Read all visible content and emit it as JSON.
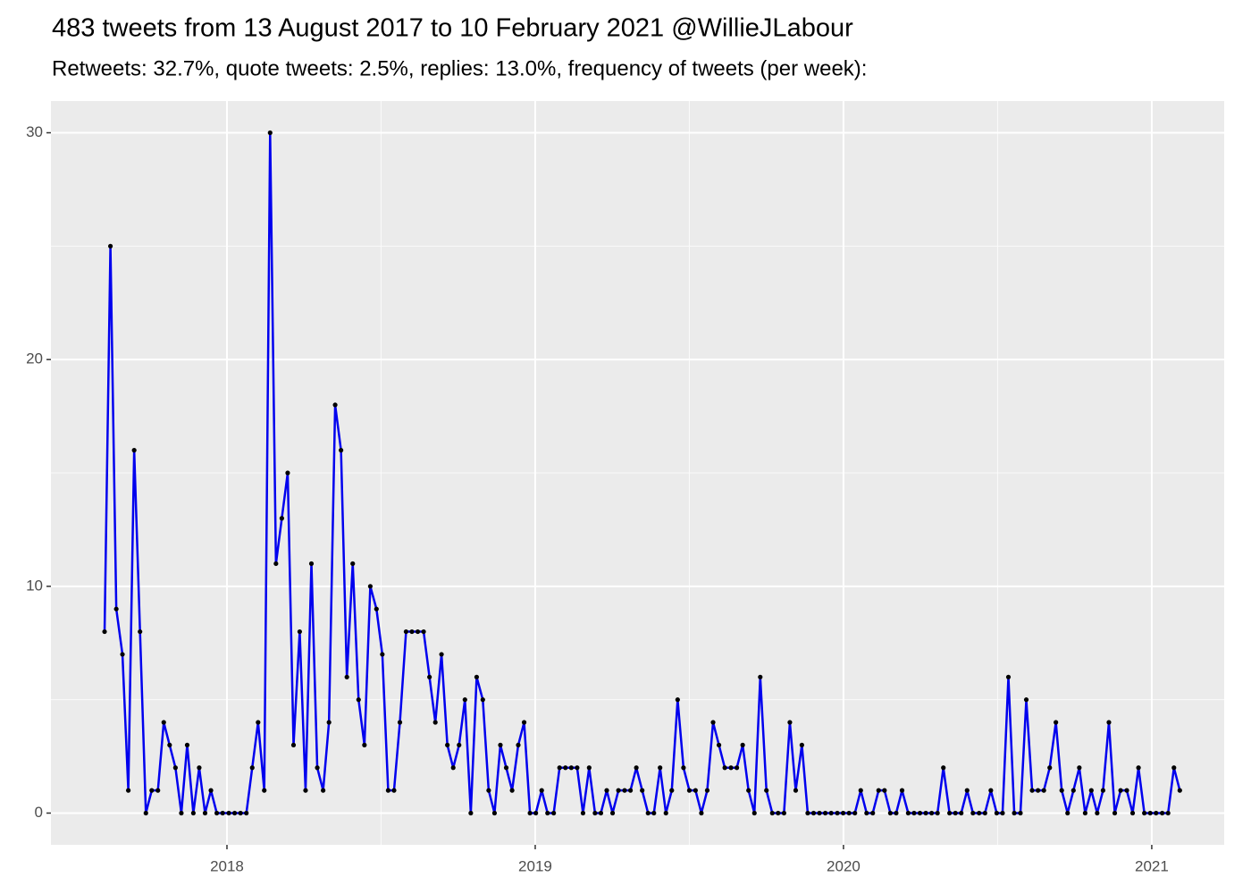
{
  "chart_data": {
    "type": "line",
    "title": "483 tweets from 13 August 2017 to 10 February 2021 @WillieJLabour",
    "subtitle": "Retweets: 32.7%, quote tweets: 2.5%, replies: 13.0%, frequency of tweets (per week):",
    "x": [
      2017.603,
      2017.622,
      2017.641,
      2017.661,
      2017.68,
      2017.699,
      2017.718,
      2017.737,
      2017.756,
      2017.776,
      2017.795,
      2017.814,
      2017.833,
      2017.852,
      2017.871,
      2017.891,
      2017.91,
      2017.929,
      2017.948,
      2017.967,
      2017.986,
      2018.006,
      2018.025,
      2018.044,
      2018.063,
      2018.082,
      2018.101,
      2018.121,
      2018.14,
      2018.159,
      2018.178,
      2018.197,
      2018.216,
      2018.236,
      2018.255,
      2018.274,
      2018.293,
      2018.312,
      2018.331,
      2018.351,
      2018.37,
      2018.389,
      2018.408,
      2018.427,
      2018.446,
      2018.465,
      2018.485,
      2018.504,
      2018.523,
      2018.542,
      2018.561,
      2018.581,
      2018.6,
      2018.619,
      2018.638,
      2018.657,
      2018.676,
      2018.696,
      2018.715,
      2018.734,
      2018.753,
      2018.772,
      2018.791,
      2018.81,
      2018.83,
      2018.849,
      2018.868,
      2018.887,
      2018.906,
      2018.925,
      2018.945,
      2018.964,
      2018.983,
      2019.002,
      2019.021,
      2019.04,
      2019.06,
      2019.079,
      2019.098,
      2019.117,
      2019.136,
      2019.155,
      2019.175,
      2019.194,
      2019.213,
      2019.232,
      2019.251,
      2019.27,
      2019.29,
      2019.309,
      2019.328,
      2019.347,
      2019.366,
      2019.385,
      2019.405,
      2019.424,
      2019.443,
      2019.462,
      2019.481,
      2019.5,
      2019.52,
      2019.539,
      2019.558,
      2019.577,
      2019.596,
      2019.615,
      2019.635,
      2019.654,
      2019.673,
      2019.692,
      2019.711,
      2019.73,
      2019.75,
      2019.769,
      2019.788,
      2019.807,
      2019.826,
      2019.845,
      2019.865,
      2019.884,
      2019.903,
      2019.922,
      2019.941,
      2019.96,
      2019.98,
      2019.999,
      2020.018,
      2020.037,
      2020.056,
      2020.075,
      2020.095,
      2020.114,
      2020.133,
      2020.152,
      2020.171,
      2020.19,
      2020.21,
      2020.229,
      2020.248,
      2020.267,
      2020.286,
      2020.305,
      2020.324,
      2020.344,
      2020.363,
      2020.382,
      2020.401,
      2020.42,
      2020.44,
      2020.459,
      2020.478,
      2020.497,
      2020.516,
      2020.535,
      2020.554,
      2020.574,
      2020.593,
      2020.612,
      2020.631,
      2020.65,
      2020.669,
      2020.689,
      2020.708,
      2020.727,
      2020.746,
      2020.765,
      2020.784,
      2020.804,
      2020.823,
      2020.842,
      2020.861,
      2020.88,
      2020.899,
      2020.919,
      2020.938,
      2020.957,
      2020.976,
      2020.995,
      2021.014,
      2021.034,
      2021.053,
      2021.072,
      2021.091
    ],
    "series": [
      {
        "color": "#0000ee",
        "marker_color": "#000000",
        "values": [
          8,
          25,
          9,
          7,
          1,
          16,
          8,
          0,
          1,
          1,
          4,
          3,
          2,
          0,
          3,
          0,
          2,
          0,
          1,
          0,
          0,
          0,
          0,
          0,
          0,
          2,
          4,
          1,
          30,
          11,
          13,
          15,
          3,
          8,
          1,
          11,
          2,
          1,
          4,
          18,
          16,
          6,
          11,
          5,
          3,
          10,
          9,
          7,
          1,
          1,
          4,
          8,
          8,
          8,
          8,
          6,
          4,
          7,
          3,
          2,
          3,
          5,
          0,
          6,
          5,
          1,
          0,
          3,
          2,
          1,
          3,
          4,
          0,
          0,
          1,
          0,
          0,
          2,
          2,
          2,
          2,
          0,
          2,
          0,
          0,
          1,
          0,
          1,
          1,
          1,
          2,
          1,
          0,
          0,
          2,
          0,
          1,
          5,
          2,
          1,
          1,
          0,
          1,
          4,
          3,
          2,
          2,
          2,
          3,
          1,
          0,
          6,
          1,
          0,
          0,
          0,
          4,
          1,
          3,
          0,
          0,
          0,
          0,
          0,
          0,
          0,
          0,
          0,
          1,
          0,
          0,
          1,
          1,
          0,
          0,
          1,
          0,
          0,
          0,
          0,
          0,
          0,
          2,
          0,
          0,
          0,
          1,
          0,
          0,
          0,
          1,
          0,
          0,
          6,
          0,
          0,
          5,
          1,
          1,
          1,
          2,
          4,
          1,
          0,
          1,
          2,
          0,
          1,
          0,
          1,
          4,
          0,
          1,
          1,
          0,
          2,
          0,
          0,
          0,
          0,
          0,
          2,
          1
        ]
      }
    ],
    "xlim": [
      2017.429,
      2021.235
    ],
    "xticks": [
      2018,
      2019,
      2020,
      2021
    ],
    "ylim": [
      -1.4,
      31.4
    ],
    "yticks": [
      0,
      10,
      20,
      30
    ],
    "grid": true
  }
}
